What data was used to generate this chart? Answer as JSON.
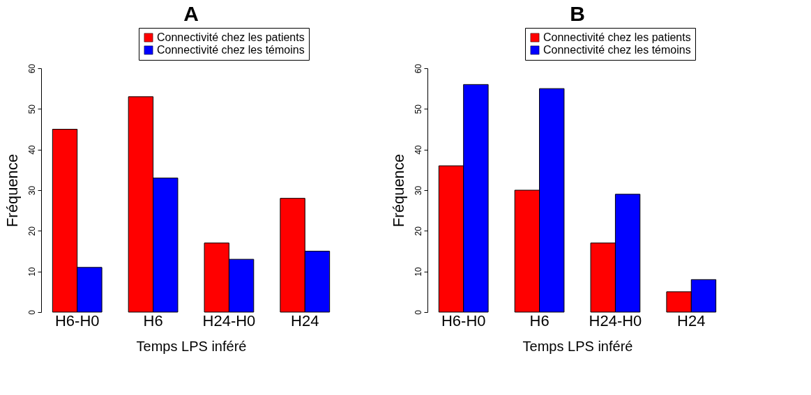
{
  "chart_data": [
    {
      "type": "bar",
      "title": "A",
      "xlabel": "Temps LPS inféré",
      "ylabel": "Fréquence",
      "categories": [
        "H6-H0",
        "H6",
        "H24-H0",
        "H24"
      ],
      "series": [
        {
          "name": "Connectivité chez les patients",
          "color": "#ff0000",
          "values": [
            45,
            53,
            17,
            28
          ]
        },
        {
          "name": "Connectivité chez les témoins",
          "color": "#0000ff",
          "values": [
            11,
            33,
            13,
            15
          ]
        }
      ],
      "ylim": [
        0,
        60
      ],
      "yticks": [
        0,
        10,
        20,
        30,
        40,
        50,
        60
      ],
      "grid": false,
      "legend": "top right"
    },
    {
      "type": "bar",
      "title": "B",
      "xlabel": "Temps LPS inféré",
      "ylabel": "Fréquence",
      "categories": [
        "H6-H0",
        "H6",
        "H24-H0",
        "H24"
      ],
      "series": [
        {
          "name": "Connectivité chez les patients",
          "color": "#ff0000",
          "values": [
            36,
            30,
            17,
            5
          ]
        },
        {
          "name": "Connectivité chez les témoins",
          "color": "#0000ff",
          "values": [
            56,
            55,
            29,
            8
          ]
        }
      ],
      "ylim": [
        0,
        60
      ],
      "yticks": [
        0,
        10,
        20,
        30,
        40,
        50,
        60
      ],
      "grid": false,
      "legend": "top right"
    }
  ]
}
